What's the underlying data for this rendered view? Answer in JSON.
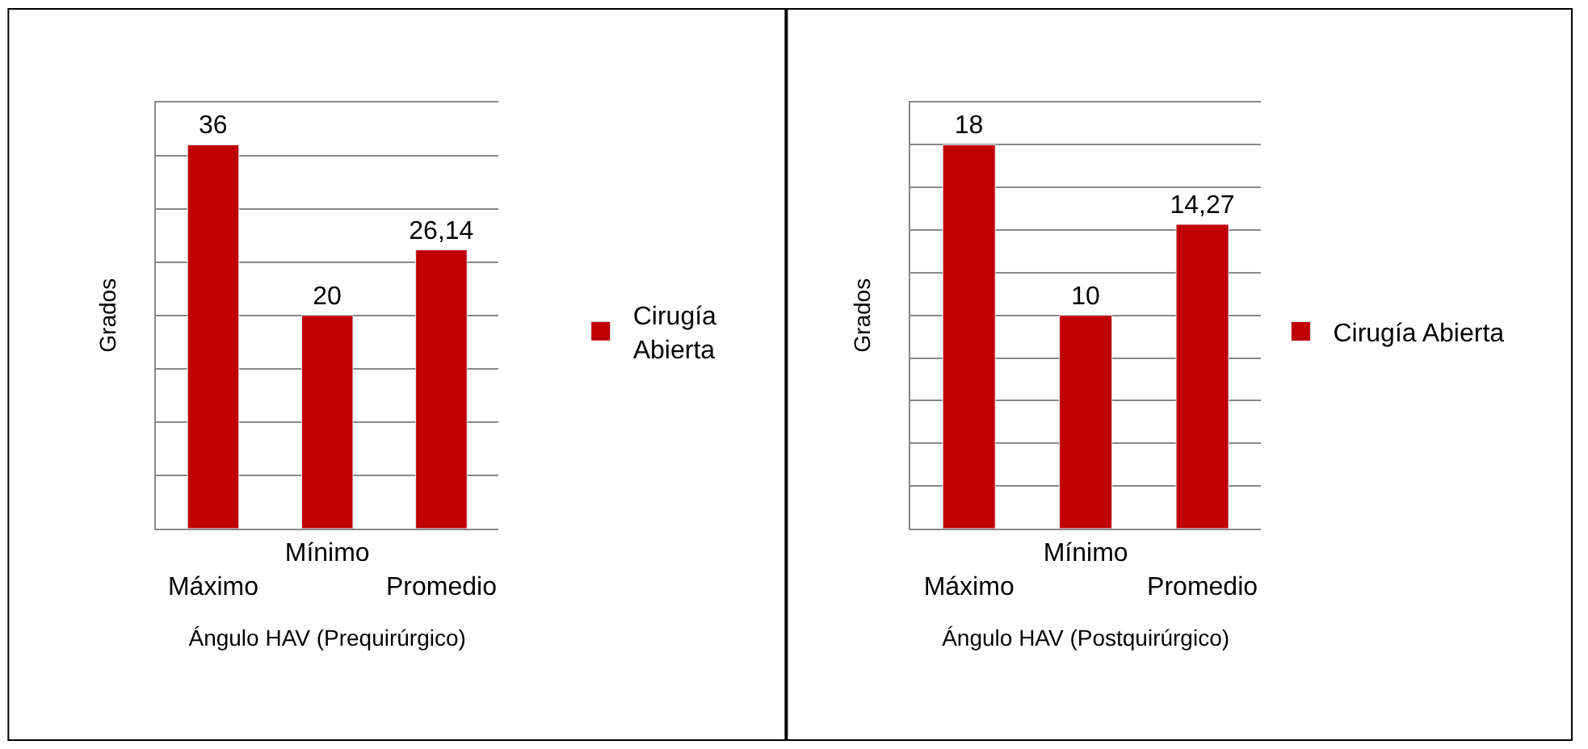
{
  "chart_data": [
    {
      "type": "bar",
      "categories": [
        "Máximo",
        "Mínimo",
        "Promedio"
      ],
      "series": [
        {
          "name": "Cirugía Abierta",
          "color": "#c00000",
          "values": [
            36,
            20,
            26.14
          ],
          "value_labels": [
            "36",
            "20",
            "26,14"
          ]
        }
      ],
      "ylabel": "Grados",
      "xlabel": "Ángulo HAV (Prequirúrgico)",
      "ylim": [
        0,
        40
      ],
      "yticks": [
        {
          "value": 0,
          "label": null
        },
        {
          "value": 5,
          "label": null
        },
        {
          "value": 10,
          "label": null
        },
        {
          "value": 15,
          "label": null
        },
        {
          "value": 20,
          "label": null
        },
        {
          "value": 25,
          "label": null
        },
        {
          "value": 30,
          "label": null
        },
        {
          "value": 35,
          "label": null
        }
      ],
      "grid": "y",
      "legend": "right",
      "tick_labels": "x"
    },
    {
      "type": "bar",
      "categories": [
        "Máximo",
        "Mínimo",
        "Promedio"
      ],
      "series": [
        {
          "name": "Cirugía Abierta",
          "color": "#c00000",
          "values": [
            18,
            10,
            14.27
          ],
          "value_labels": [
            "18",
            "10",
            "14,27"
          ]
        }
      ],
      "ylabel": "Grados",
      "xlabel": "Ángulo HAV (Postquirúrgico)",
      "ylim": [
        0,
        20
      ],
      "yticks": [
        {
          "value": 0,
          "label": null
        },
        {
          "value": 2,
          "label": null
        },
        {
          "value": 4,
          "label": null
        },
        {
          "value": 6,
          "label": null
        },
        {
          "value": 8,
          "label": null
        },
        {
          "value": 10,
          "label": null
        },
        {
          "value": 12,
          "label": null
        },
        {
          "value": 14,
          "label": null
        },
        {
          "value": 16,
          "label": null
        },
        {
          "value": 18,
          "label": null
        }
      ],
      "grid": "y",
      "legend": "right",
      "tick_labels": "x"
    }
  ]
}
